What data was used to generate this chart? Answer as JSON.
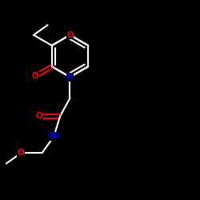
{
  "bg": "#000000",
  "bond_color": "#ffffff",
  "O_color": "#ff0000",
  "N_color": "#0000cc",
  "figsize": [
    2.5,
    2.5
  ],
  "dpi": 100,
  "xlim": [
    -1,
    9
  ],
  "ylim": [
    -1,
    9
  ],
  "lw": 1.5,
  "label_fs": 7.5,
  "nh_fs": 7.0
}
